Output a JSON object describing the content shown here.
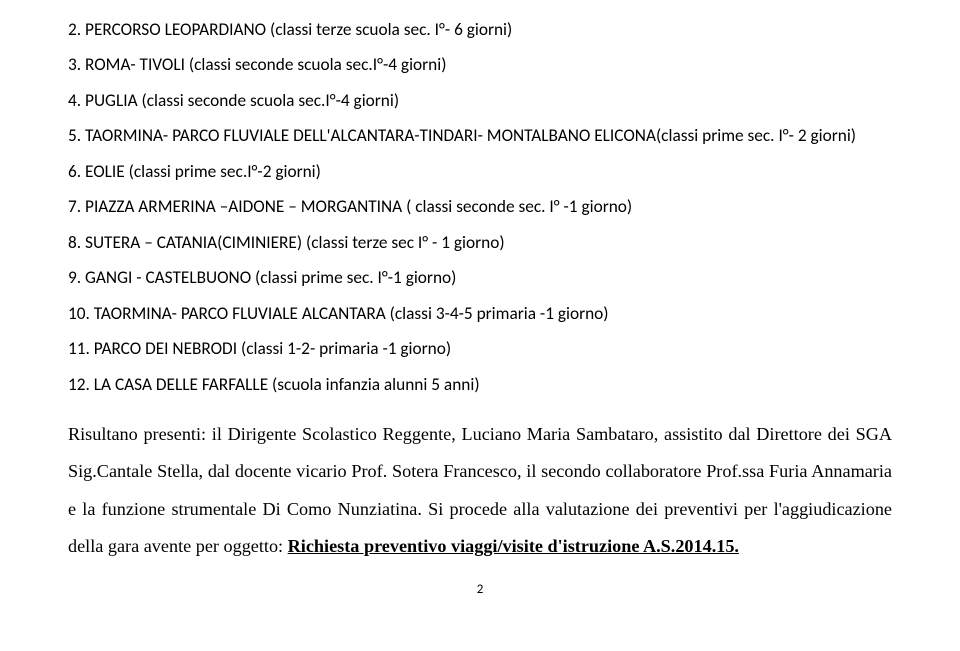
{
  "items": {
    "i2": "2. PERCORSO LEOPARDIANO (classi terze scuola sec. I°- 6 giorni)",
    "i3": "3. ROMA- TIVOLI (classi seconde scuola sec.I°-4 giorni)",
    "i4": "4. PUGLIA   (classi seconde scuola sec.I°-4 giorni)",
    "i5": "5. TAORMINA- PARCO FLUVIALE DELL'ALCANTARA-TINDARI- MONTALBANO ELICONA(classi prime sec. I°- 2 giorni)",
    "i6": "6. EOLIE (classi prime sec.I°-2 giorni)",
    "i7": "7. PIAZZA ARMERINA –AIDONE – MORGANTINA ( classi seconde sec. I° -1 giorno)",
    "i8": "8. SUTERA – CATANIA(CIMINIERE) (classi terze sec I° - 1 giorno)",
    "i9": "9. GANGI -  CASTELBUONO (classi prime sec. I°-1 giorno)",
    "i10": "10.    TAORMINA- PARCO FLUVIALE ALCANTARA  (classi 3-4-5 primaria -1 giorno)",
    "i11": "11.    PARCO DEI NEBRODI (classi 1-2- primaria -1 giorno)",
    "i12": "12.    LA CASA DELLE FARFALLE (scuola infanzia  alunni 5 anni)"
  },
  "para": {
    "p1a": "Risultano presenti: il Dirigente Scolastico Reggente, Luciano Maria Sambataro, assistito dal Direttore dei SGA Sig.Cantale Stella, dal docente vicario Prof. Sotera Francesco, il secondo collaboratore Prof.ssa Furia Annamaria e la funzione strumentale Di Como Nunziatina. Si procede alla valutazione dei preventivi per l'aggiudicazione della gara avente per oggetto: ",
    "p1b": "Richiesta preventivo viaggi/visite d'istruzione A.S.2014.15."
  },
  "pagenum": "2"
}
